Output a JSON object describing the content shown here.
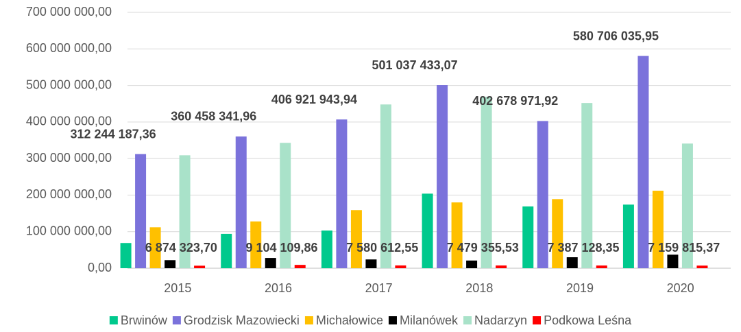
{
  "chart_data": {
    "type": "bar",
    "categories": [
      "2015",
      "2016",
      "2017",
      "2018",
      "2019",
      "2020"
    ],
    "series": [
      {
        "name": "Brwinów",
        "color": "#00c98d",
        "values": [
          69000000,
          94000000,
          103000000,
          204000000,
          169000000,
          174000000
        ]
      },
      {
        "name": "Grodzisk Mazowiecki",
        "color": "#7b72db",
        "values": [
          312244187.36,
          360458341.96,
          406921943.94,
          501037433.07,
          402678971.92,
          580706035.95
        ],
        "value_labels": [
          "312 244 187,36",
          "360 458 341,96",
          "406 921 943,94",
          "501 037 433,07",
          "402 678 971,92",
          "580 706 035,95"
        ]
      },
      {
        "name": "Michałowice",
        "color": "#ffc000",
        "values": [
          112000000,
          128000000,
          159000000,
          180000000,
          189000000,
          212000000
        ]
      },
      {
        "name": "Milanówek",
        "color": "#000000",
        "values": [
          22000000,
          28000000,
          24000000,
          21000000,
          30000000,
          37000000
        ]
      },
      {
        "name": "Nadarzyn",
        "color": "#a9e2c9",
        "values": [
          309000000,
          343000000,
          448000000,
          469000000,
          452000000,
          341000000
        ]
      },
      {
        "name": "Podkowa Leśna",
        "color": "#ff0000",
        "values": [
          6874323.7,
          9104109.86,
          7580612.55,
          7479355.53,
          7387128.35,
          7159815.37
        ],
        "value_labels": [
          "6 874 323,70",
          "9 104 109,86",
          "7 580 612,55",
          "7 479 355,53",
          "7 387 128,35",
          "7 159 815,37"
        ]
      }
    ],
    "ylim": [
      0,
      700000000
    ],
    "yticks": [
      {
        "value": 0,
        "label": "0,00"
      },
      {
        "value": 100000000,
        "label": "100 000 000,00"
      },
      {
        "value": 200000000,
        "label": "200 000 000,00"
      },
      {
        "value": 300000000,
        "label": "300 000 000,00"
      },
      {
        "value": 400000000,
        "label": "400 000 000,00"
      },
      {
        "value": 500000000,
        "label": "500 000 000,00"
      },
      {
        "value": 600000000,
        "label": "600 000 000,00"
      },
      {
        "value": 700000000,
        "label": "700 000 000,00"
      }
    ],
    "grid": true,
    "legend": "bottom"
  }
}
